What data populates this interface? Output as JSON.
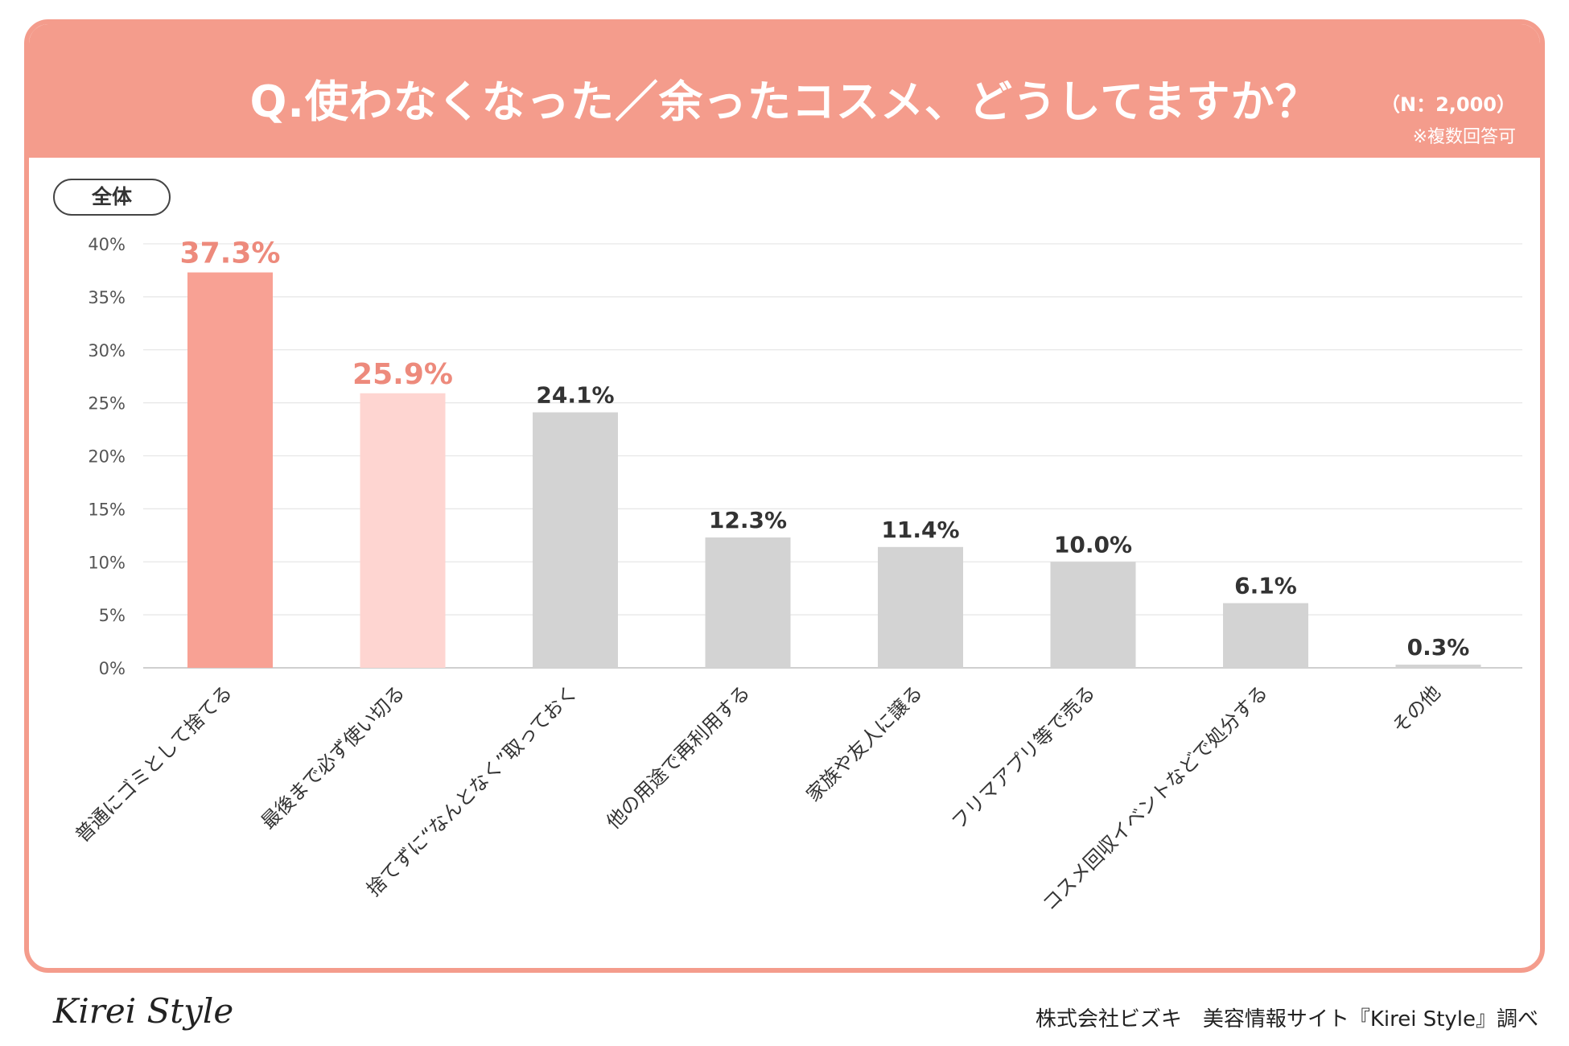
{
  "header": {
    "title": "Q.使わなくなった／余ったコスメ、どうしてますか？",
    "sample_size": "（N：2,000）",
    "note": "※複数回答可"
  },
  "group_label": "全体",
  "footer": {
    "logo": "Kirei Style",
    "credit": "株式会社ビズキ　美容情報サイト『Kirei Style』調べ"
  },
  "colors": {
    "accent": "#f49c8c",
    "highlight_bar_1": "#f8a194",
    "highlight_bar_2": "#fed5d1",
    "default_bar": "#d3d3d3",
    "highlight_label": "#ed8a7c",
    "default_label": "#333333"
  },
  "chart_data": {
    "type": "bar",
    "title": "Q.使わなくなった／余ったコスメ、どうしてますか？",
    "xlabel": "",
    "ylabel": "",
    "ylim": [
      0,
      40
    ],
    "yticks": [
      0,
      5,
      10,
      15,
      20,
      25,
      30,
      35,
      40
    ],
    "ytick_labels": [
      "0%",
      "5%",
      "10%",
      "15%",
      "20%",
      "25%",
      "30%",
      "35%",
      "40%"
    ],
    "grid": true,
    "legend": "none",
    "categories": [
      "普通にゴミとして捨てる",
      "最後まで必ず使い切る",
      "捨てずに“なんとなく”取っておく",
      "他の用途で再利用する",
      "家族や友人に譲る",
      "フリマアプリ等で売る",
      "コスメ回収イベントなどで処分する",
      "その他"
    ],
    "values": [
      37.3,
      25.9,
      24.1,
      12.3,
      11.4,
      10.0,
      6.1,
      0.3
    ],
    "value_labels": [
      "37.3%",
      "25.9%",
      "24.1%",
      "12.3%",
      "11.4%",
      "10.0%",
      "6.1%",
      "0.3%"
    ],
    "bar_colors": [
      "#f8a194",
      "#fed5d1",
      "#d3d3d3",
      "#d3d3d3",
      "#d3d3d3",
      "#d3d3d3",
      "#d3d3d3",
      "#d3d3d3"
    ],
    "label_colors": [
      "#ed8a7c",
      "#ed8a7c",
      "#333333",
      "#333333",
      "#333333",
      "#333333",
      "#333333",
      "#333333"
    ]
  }
}
